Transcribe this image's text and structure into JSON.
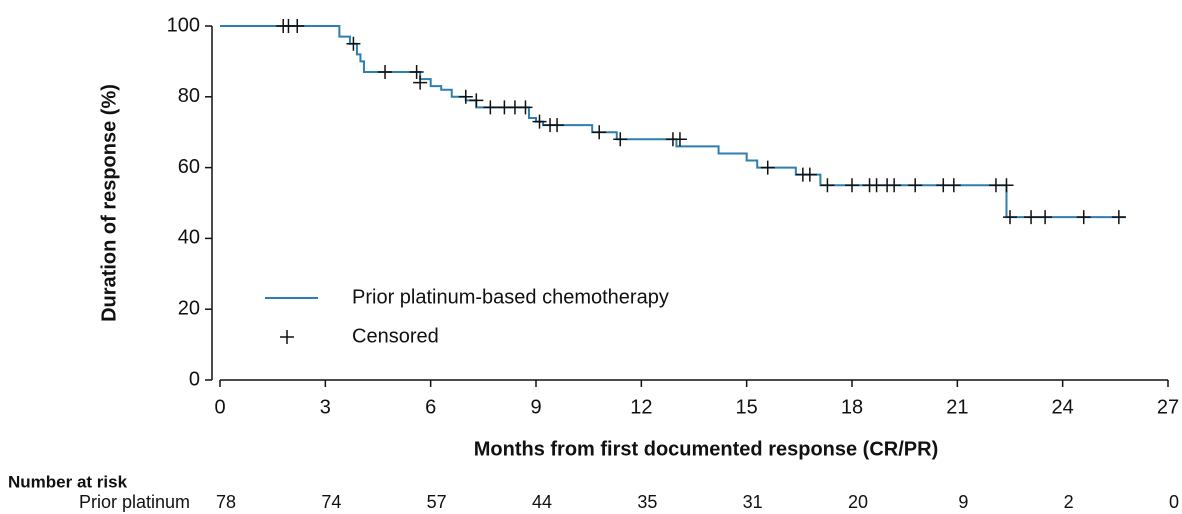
{
  "chart_data": {
    "type": "line",
    "step": true,
    "ylabel": "Duration of response (%)",
    "xlabel": "Months from first documented response (CR/PR)",
    "xlim": [
      0,
      27
    ],
    "xticks": [
      0,
      3,
      6,
      9,
      12,
      15,
      18,
      21,
      24,
      27
    ],
    "ylim": [
      0,
      100
    ],
    "yticks": [
      0,
      20,
      40,
      60,
      80,
      100
    ],
    "legend": "lower left",
    "series": [
      {
        "name": "Prior platinum-based chemotherapy",
        "color": "#2f7fae",
        "marker": "line",
        "x": [
          0,
          3.4,
          3.7,
          3.9,
          4.0,
          4.1,
          5.7,
          6.0,
          6.3,
          6.6,
          7.0,
          7.3,
          8.8,
          9.0,
          9.2,
          10.6,
          11.3,
          13.0,
          14.2,
          15.0,
          15.3,
          16.4,
          17.1,
          22.4,
          25.8
        ],
        "values": [
          100,
          97,
          95,
          92,
          90,
          87,
          85,
          83,
          82,
          80,
          79,
          77,
          74,
          73,
          72,
          70,
          68,
          66,
          64,
          62,
          60,
          58,
          55,
          46,
          46
        ]
      },
      {
        "name": "Censored",
        "color": "#111111",
        "marker": "plus",
        "x": [
          1.8,
          1.95,
          2.2,
          3.8,
          4.7,
          5.6,
          5.7,
          7.0,
          7.3,
          7.7,
          8.1,
          8.4,
          8.7,
          9.1,
          9.4,
          9.6,
          10.8,
          11.4,
          12.9,
          13.1,
          15.6,
          16.6,
          16.8,
          17.3,
          18.0,
          18.5,
          18.7,
          19.0,
          19.2,
          19.8,
          20.6,
          20.9,
          22.1,
          22.4,
          22.5,
          23.1,
          23.5,
          24.6,
          25.6
        ],
        "values": [
          100,
          100,
          100,
          95,
          87,
          87,
          84,
          80,
          79,
          77,
          77,
          77,
          77,
          73,
          72,
          72,
          70,
          68,
          68,
          68,
          60,
          58,
          58,
          55,
          55,
          55,
          55,
          55,
          55,
          55,
          55,
          55,
          55,
          55,
          46,
          46,
          46,
          46,
          46
        ]
      }
    ],
    "risk_table": {
      "title": "Number at risk",
      "label": "Prior platinum",
      "values": [
        78,
        74,
        57,
        44,
        35,
        31,
        20,
        9,
        2,
        0
      ]
    }
  }
}
